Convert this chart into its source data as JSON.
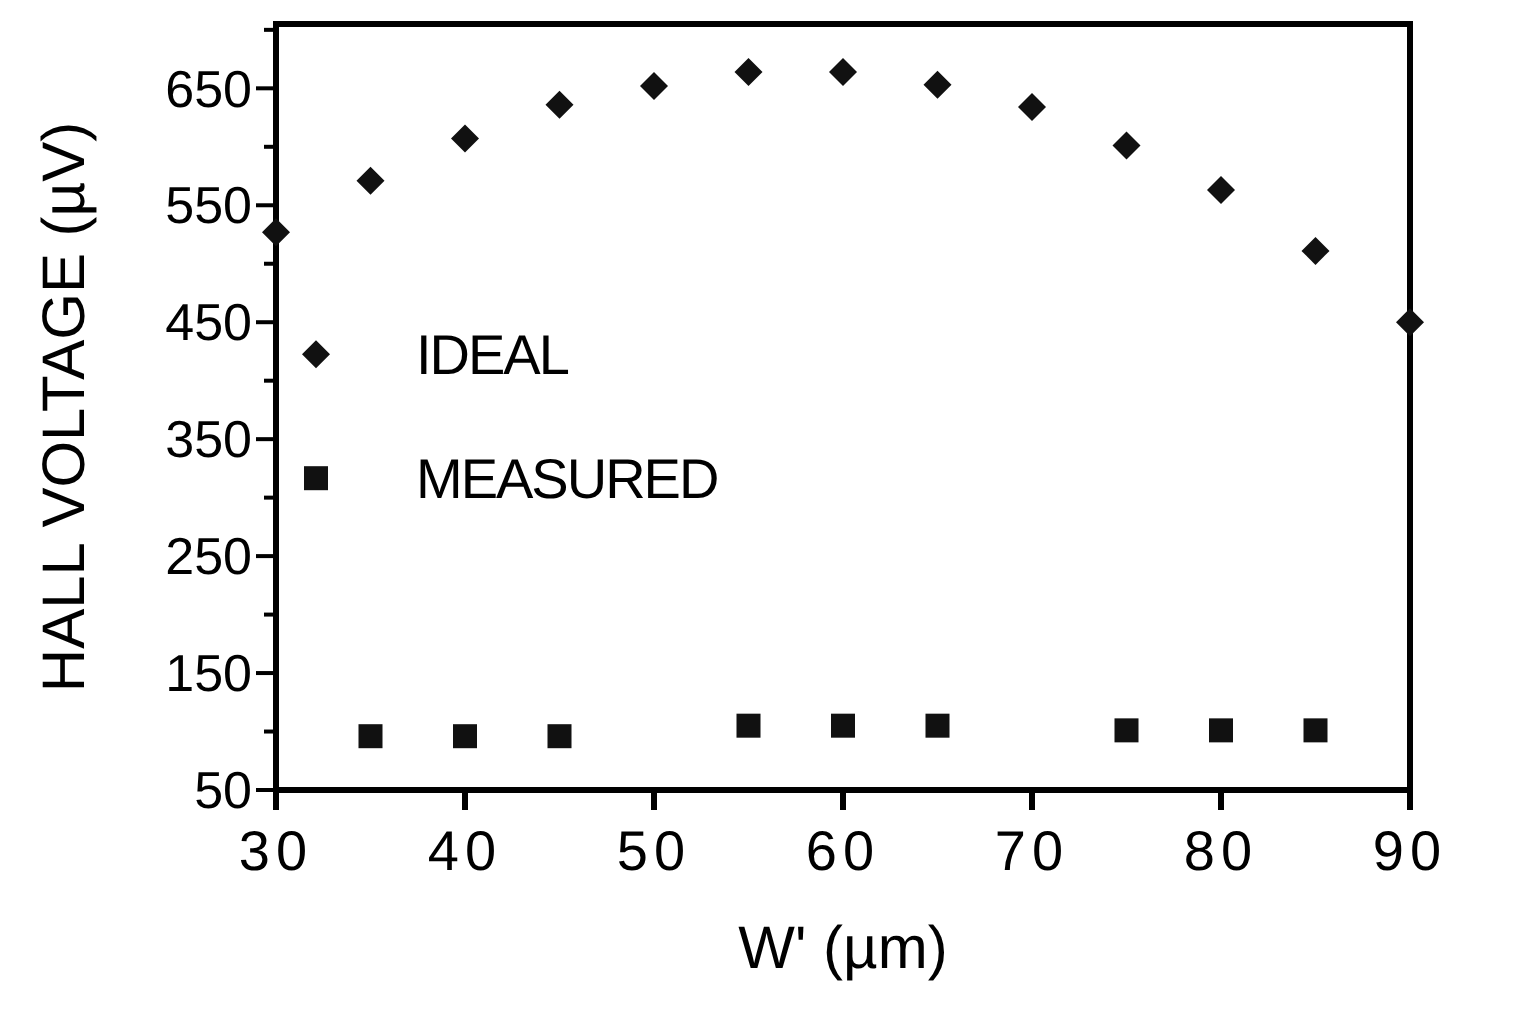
{
  "chart_data": {
    "type": "scatter",
    "xlabel": "W' (µm)",
    "ylabel": "HALL VOLTAGE (µV)",
    "xlim": [
      30,
      90
    ],
    "xticks": [
      30,
      40,
      50,
      60,
      70,
      80,
      90
    ],
    "ylim": [
      50,
      705
    ],
    "yticks": [
      50,
      {
        "value": 100,
        "label": null
      },
      150,
      {
        "value": 200,
        "label": null
      },
      250,
      {
        "value": 300,
        "label": null
      },
      350,
      {
        "value": 400,
        "label": null
      },
      450,
      {
        "value": 500,
        "label": null
      },
      550,
      {
        "value": 600,
        "label": null
      },
      650,
      {
        "value": 700,
        "label": null
      }
    ],
    "grid": false,
    "legend": "left",
    "series": [
      {
        "name": "IDEAL",
        "color": "#111111",
        "marker": "diamond",
        "x": [
          30,
          35,
          40,
          45,
          50,
          55,
          60,
          65,
          70,
          75,
          80,
          85,
          90
        ],
        "values": [
          527,
          571,
          607,
          636,
          652,
          664,
          664,
          653,
          634,
          601,
          563,
          511,
          450
        ]
      },
      {
        "name": "MEASURED",
        "color": "#111111",
        "marker": "square",
        "x": [
          35,
          40,
          45,
          55,
          60,
          65,
          75,
          80,
          85
        ],
        "values": [
          96,
          96,
          96,
          105,
          105,
          105,
          101,
          101,
          101
        ]
      }
    ]
  }
}
